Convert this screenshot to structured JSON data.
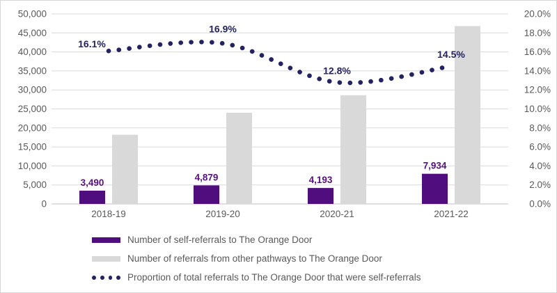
{
  "chart_data": {
    "type": "bar",
    "subtype": "grouped bars with smoothed dotted percentage line, dual y-axes",
    "categories": [
      "2018-19",
      "2019-20",
      "2020-21",
      "2021-22"
    ],
    "series": [
      {
        "name": "Number of self-referrals to The Orange Door",
        "type": "bar",
        "color": "#4F0D7D",
        "label_color": "#55117F",
        "values": [
          3490,
          4879,
          4193,
          7934
        ],
        "data_labels": [
          "3,490",
          "4,879",
          "4,193",
          "7,934"
        ]
      },
      {
        "name": "Number of referrals from other pathways to The Orange Door",
        "type": "bar",
        "color": "#D9D9D9",
        "values": [
          18200,
          24000,
          28600,
          46800
        ],
        "data_labels": []
      },
      {
        "name": "Proportion of total referrals to The Orange Door that were self-referrals",
        "type": "dotted-line",
        "color": "#232262",
        "values": [
          16.1,
          16.9,
          12.8,
          14.5
        ],
        "data_labels": [
          "16.1%",
          "16.9%",
          "12.8%",
          "14.5%"
        ]
      }
    ],
    "left_axis": {
      "min": 0,
      "max": 50000,
      "ticks": [
        "50,000",
        "45,000",
        "40,000",
        "35,000",
        "30,000",
        "25,000",
        "20,000",
        "15,000",
        "10,000",
        "5,000",
        "0"
      ]
    },
    "right_axis": {
      "min": 0,
      "max": 20,
      "ticks": [
        "20.0%",
        "18.0%",
        "16.0%",
        "14.0%",
        "12.0%",
        "10.0%",
        "8.0%",
        "6.0%",
        "4.0%",
        "2.0%",
        "0.0%"
      ]
    },
    "grid": true,
    "legend_position": "bottom",
    "title": "",
    "xlabel": "",
    "ylabel": ""
  },
  "colors": {
    "axis_text": "#595959",
    "gridline": "#D9D9D9",
    "axis_line": "#BFBFBF",
    "background": "#FFFFFF"
  }
}
